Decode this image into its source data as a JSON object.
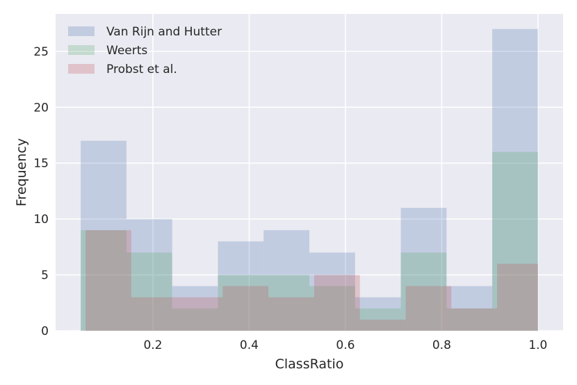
{
  "chart_data": {
    "type": "bar",
    "subtype": "overlapping-histogram",
    "title": "",
    "xlabel": "ClassRatio",
    "ylabel": "Frequency",
    "xlim": [
      -0.0022,
      1.0522
    ],
    "ylim": [
      0,
      28.35
    ],
    "x_ticks": [
      {
        "value": 0.2,
        "label": "0.2"
      },
      {
        "value": 0.4,
        "label": "0.4"
      },
      {
        "value": 0.6,
        "label": "0.6"
      },
      {
        "value": 0.8,
        "label": "0.8"
      },
      {
        "value": 1.0,
        "label": "1.0"
      }
    ],
    "y_ticks": [
      {
        "value": 0,
        "label": "0"
      },
      {
        "value": 5,
        "label": "5"
      },
      {
        "value": 10,
        "label": "10"
      },
      {
        "value": 15,
        "label": "15"
      },
      {
        "value": 20,
        "label": "20"
      },
      {
        "value": 25,
        "label": "25"
      }
    ],
    "grid": true,
    "legend_position": "top-left",
    "series": [
      {
        "name": "Van Rijn and Hutter",
        "color": "#4c72b0",
        "bin_edges": [
          0.05,
          0.145,
          0.24,
          0.335,
          0.43,
          0.525,
          0.62,
          0.715,
          0.81,
          0.905,
          1.0
        ],
        "counts": [
          17,
          10,
          4,
          8,
          9,
          7,
          3,
          11,
          4,
          27
        ]
      },
      {
        "name": "Weerts",
        "color": "#55a868",
        "bin_edges": [
          0.05,
          0.145,
          0.24,
          0.335,
          0.43,
          0.525,
          0.62,
          0.715,
          0.81,
          0.905,
          1.0
        ],
        "counts": [
          9,
          7,
          2,
          5,
          5,
          4,
          2,
          7,
          2,
          16
        ]
      },
      {
        "name": "Probst et al.",
        "color": "#c44e52",
        "bin_edges": [
          0.06,
          0.155,
          0.25,
          0.345,
          0.44,
          0.535,
          0.63,
          0.725,
          0.82,
          0.915,
          1.0
        ],
        "counts": [
          9,
          3,
          3,
          4,
          3,
          5,
          1,
          4,
          2,
          6
        ]
      }
    ]
  }
}
